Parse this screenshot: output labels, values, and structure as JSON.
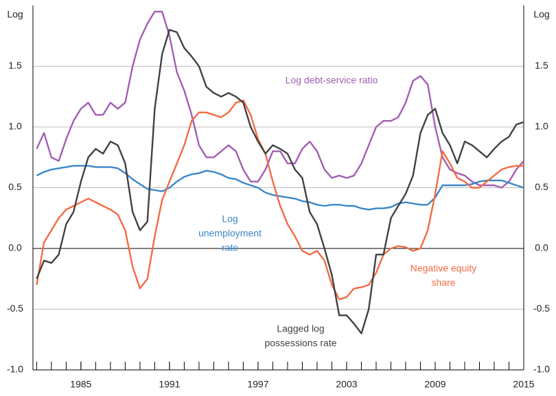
{
  "chart_data": {
    "type": "line",
    "y_label": "Log",
    "xlim": [
      1981.75,
      2015.0
    ],
    "xticks": [
      1985,
      1991,
      1997,
      2003,
      2009,
      2015
    ],
    "minor_xticks": [
      1982,
      1983,
      1984,
      1985,
      1986,
      1987,
      1988,
      1989,
      1990,
      1991,
      1992,
      1993,
      1994,
      1995,
      1996,
      1997,
      1998,
      1999,
      2000,
      2001,
      2002,
      2003,
      2004,
      2005,
      2006,
      2007,
      2008,
      2009,
      2010,
      2011,
      2012,
      2013,
      2014,
      2015
    ],
    "ylim": [
      -1.0,
      2.0
    ],
    "yticks": [
      {
        "value": -1,
        "label": "-1.0"
      },
      -0.5,
      {
        "value": 0,
        "label": "0.0"
      },
      {
        "value": 0.5,
        "label": "0.5"
      },
      {
        "value": 1,
        "label": "1.0"
      },
      1.5
    ],
    "grid": true,
    "x": [
      1982,
      1982.5,
      1983,
      1983.5,
      1984,
      1984.5,
      1985,
      1985.5,
      1986,
      1986.5,
      1987,
      1987.5,
      1988,
      1988.5,
      1989,
      1989.5,
      1990,
      1990.5,
      1991,
      1991.5,
      1992,
      1992.5,
      1993,
      1993.5,
      1994,
      1994.5,
      1995,
      1995.5,
      1996,
      1996.5,
      1997,
      1997.5,
      1998,
      1998.5,
      1999,
      1999.5,
      2000,
      2000.5,
      2001,
      2001.5,
      2002,
      2002.5,
      2003,
      2003.5,
      2004,
      2004.5,
      2005,
      2005.5,
      2006,
      2006.5,
      2007,
      2007.5,
      2008,
      2008.5,
      2009,
      2009.5,
      2010,
      2010.5,
      2011,
      2011.5,
      2012,
      2012.5,
      2013,
      2013.5,
      2014,
      2014.5,
      2015
    ],
    "series": [
      {
        "name": "Log debt-service ratio",
        "label_lines": [
          "Log debt-service ratio"
        ],
        "color": "#a25db3",
        "values": [
          0.82,
          0.95,
          0.75,
          0.72,
          0.9,
          1.05,
          1.15,
          1.2,
          1.1,
          1.1,
          1.2,
          1.15,
          1.2,
          1.5,
          1.72,
          1.85,
          1.95,
          1.95,
          1.75,
          1.45,
          1.3,
          1.1,
          0.85,
          0.75,
          0.75,
          0.8,
          0.85,
          0.8,
          0.65,
          0.55,
          0.55,
          0.65,
          0.8,
          0.8,
          0.7,
          0.7,
          0.82,
          0.88,
          0.8,
          0.65,
          0.58,
          0.6,
          0.58,
          0.6,
          0.7,
          0.85,
          1.0,
          1.05,
          1.05,
          1.08,
          1.2,
          1.38,
          1.42,
          1.35,
          1.0,
          0.75,
          0.65,
          0.62,
          0.6,
          0.55,
          0.52,
          0.52,
          0.52,
          0.5,
          0.55,
          0.65,
          0.72
        ]
      },
      {
        "name": "Log unemployment rate",
        "label_lines": [
          "Log",
          "unemployment",
          "rate"
        ],
        "color": "#3a86c8",
        "values": [
          0.6,
          0.63,
          0.65,
          0.66,
          0.67,
          0.68,
          0.68,
          0.68,
          0.67,
          0.67,
          0.67,
          0.66,
          0.62,
          0.57,
          0.53,
          0.49,
          0.48,
          0.47,
          0.5,
          0.55,
          0.59,
          0.61,
          0.62,
          0.64,
          0.63,
          0.61,
          0.58,
          0.57,
          0.54,
          0.52,
          0.5,
          0.46,
          0.44,
          0.43,
          0.42,
          0.41,
          0.39,
          0.38,
          0.36,
          0.35,
          0.36,
          0.36,
          0.35,
          0.35,
          0.33,
          0.32,
          0.33,
          0.33,
          0.34,
          0.37,
          0.38,
          0.37,
          0.36,
          0.36,
          0.42,
          0.52,
          0.52,
          0.52,
          0.52,
          0.53,
          0.55,
          0.56,
          0.56,
          0.56,
          0.54,
          0.52,
          0.5
        ]
      },
      {
        "name": "Negative equity share",
        "label_lines": [
          "Negative equity",
          "share"
        ],
        "color": "#f26b43",
        "values": [
          -0.3,
          0.05,
          0.15,
          0.25,
          0.32,
          0.35,
          0.38,
          0.41,
          0.38,
          0.35,
          0.32,
          0.28,
          0.15,
          -0.15,
          -0.33,
          -0.25,
          0.1,
          0.4,
          0.55,
          0.7,
          0.85,
          1.05,
          1.12,
          1.12,
          1.1,
          1.08,
          1.12,
          1.2,
          1.22,
          1.1,
          0.9,
          0.78,
          0.55,
          0.35,
          0.2,
          0.1,
          -0.02,
          -0.05,
          -0.02,
          -0.1,
          -0.3,
          -0.42,
          -0.4,
          -0.33,
          -0.32,
          -0.3,
          -0.2,
          -0.05,
          0.0,
          0.02,
          0.01,
          -0.02,
          0.0,
          0.15,
          0.45,
          0.8,
          0.7,
          0.58,
          0.55,
          0.5,
          0.5,
          0.55,
          0.6,
          0.65,
          0.67,
          0.68,
          0.68
        ]
      },
      {
        "name": "Lagged log possessions rate",
        "label_lines": [
          "Lagged log",
          "possessions rate"
        ],
        "color": "#414042",
        "values": [
          -0.25,
          -0.1,
          -0.12,
          -0.05,
          0.2,
          0.3,
          0.55,
          0.75,
          0.82,
          0.78,
          0.88,
          0.85,
          0.7,
          0.3,
          0.15,
          0.22,
          1.15,
          1.6,
          1.8,
          1.78,
          1.65,
          1.58,
          1.5,
          1.33,
          1.28,
          1.25,
          1.28,
          1.25,
          1.2,
          1.0,
          0.88,
          0.78,
          0.85,
          0.82,
          0.78,
          0.65,
          0.58,
          0.3,
          0.2,
          0.0,
          -0.22,
          -0.55,
          -0.55,
          -0.62,
          -0.7,
          -0.5,
          -0.05,
          -0.05,
          0.25,
          0.35,
          0.45,
          0.6,
          0.95,
          1.1,
          1.15,
          0.95,
          0.85,
          0.7,
          0.88,
          0.85,
          0.8,
          0.75,
          0.82,
          0.88,
          0.92,
          1.02,
          1.04
        ]
      }
    ]
  }
}
